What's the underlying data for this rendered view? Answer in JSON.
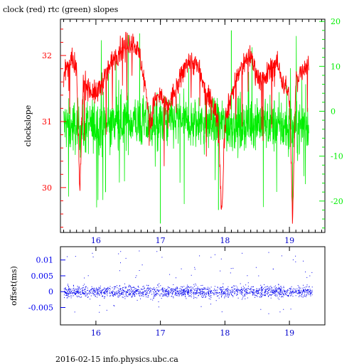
{
  "title": "clock (red) rtc (green) slopes",
  "footer": "2016-02-15 info.physics.ubc.ca",
  "colors": {
    "clock": "#ff0000",
    "rtc": "#00ee00",
    "offset": "#0000ee",
    "axis": "#000000"
  },
  "chart_data": [
    {
      "type": "line",
      "ylabel": "clockslope",
      "xlim": [
        15.45,
        19.55
      ],
      "ylim": [
        29.32,
        32.55
      ],
      "y2lim": [
        -27,
        20.5
      ],
      "x_ticks": [
        "16",
        "17",
        "18",
        "19"
      ],
      "y_ticks": [
        "30",
        "31",
        "32"
      ],
      "y2_ticks": [
        "20",
        "10",
        "0",
        "-10",
        "-20"
      ],
      "series": [
        {
          "axis": "left",
          "color": "#ff0000",
          "x": [
            15.5,
            15.6,
            15.7,
            15.75,
            15.8,
            15.9,
            16.0,
            16.1,
            16.2,
            16.3,
            16.4,
            16.5,
            16.6,
            16.7,
            16.8,
            16.85,
            16.9,
            17.0,
            17.1,
            17.2,
            17.3,
            17.4,
            17.5,
            17.6,
            17.7,
            17.8,
            17.9,
            17.95,
            18.0,
            18.1,
            18.2,
            18.3,
            18.4,
            18.5,
            18.6,
            18.7,
            18.8,
            18.9,
            19.0,
            19.05,
            19.1,
            19.2,
            19.3
          ],
          "y": [
            31.7,
            31.9,
            31.8,
            29.9,
            31.6,
            31.5,
            31.4,
            31.6,
            31.8,
            32.0,
            32.1,
            32.2,
            32.2,
            31.9,
            31.3,
            30.9,
            31.3,
            31.4,
            31.2,
            31.4,
            31.6,
            31.9,
            31.9,
            31.8,
            31.4,
            31.3,
            31.0,
            29.6,
            31.0,
            31.4,
            31.7,
            31.9,
            32.0,
            31.7,
            31.6,
            31.8,
            31.9,
            31.6,
            31.4,
            29.5,
            31.6,
            31.8,
            31.9
          ]
        },
        {
          "axis": "right",
          "color": "#00ee00",
          "x": [
            15.5,
            15.75,
            16.0,
            16.2,
            16.5,
            16.8,
            17.0,
            17.3,
            17.5,
            17.75,
            18.0,
            18.25,
            18.5,
            18.75,
            19.0,
            19.3
          ],
          "y": [
            -3,
            -4,
            -3,
            -3,
            -2,
            -3,
            -3,
            -2,
            -3,
            -3,
            -3,
            -3,
            -2,
            -3,
            -4,
            -3
          ],
          "band": [
            -9,
            6
          ]
        }
      ]
    },
    {
      "type": "scatter",
      "ylabel": "offset(ms)",
      "xlim": [
        15.45,
        19.55
      ],
      "ylim": [
        -0.0105,
        0.0142
      ],
      "x_ticks": [
        "16",
        "17",
        "18",
        "19"
      ],
      "y_ticks": [
        "0.01",
        "0.005",
        "0",
        "-0.005"
      ],
      "series": [
        {
          "color": "#0000ee",
          "x": [
            15.5,
            19.35
          ],
          "y": [
            0,
            0
          ],
          "band": [
            -0.0025,
            0.0025
          ]
        }
      ]
    }
  ]
}
